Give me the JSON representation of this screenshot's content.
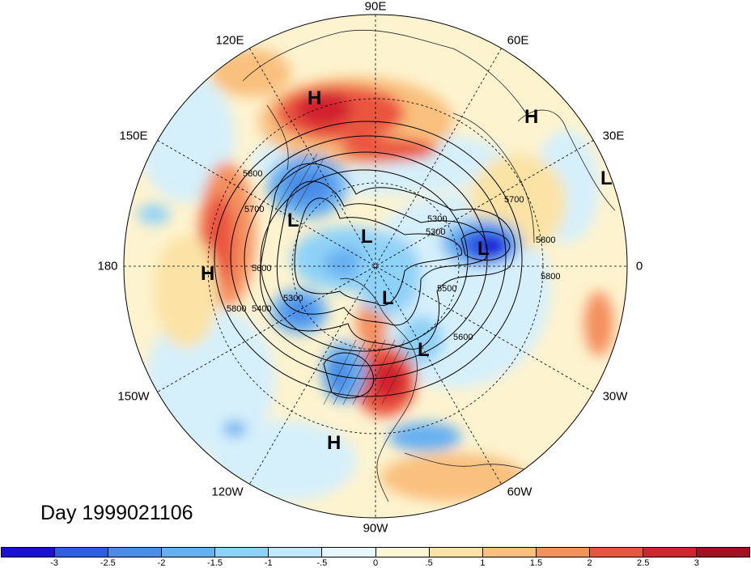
{
  "longitude_labels": {
    "lon_90E": "90E",
    "lon_60E": "60E",
    "lon_120E": "120E",
    "lon_150E": "150E",
    "lon_30E": "30E",
    "lon_180": "180",
    "lon_0": "0",
    "lon_150W": "150W",
    "lon_30W": "30W",
    "lon_120W": "120W",
    "lon_60W": "60W",
    "lon_90W": "90W"
  },
  "day_label": "Day 1999021106",
  "pressure_systems": [
    "H",
    "H",
    "L",
    "L",
    "L",
    "H",
    "L",
    "L",
    "L",
    "H"
  ],
  "contour_labels": [
    "5800",
    "5700",
    "5300",
    "5800",
    "5700",
    "5800",
    "5600",
    "5400",
    "5300",
    "5500",
    "5600",
    "5800",
    "5300"
  ],
  "colorbar": {
    "ticks": [
      "-3",
      "-2.5",
      "-2",
      "-1.5",
      "-1",
      "-.5",
      "0",
      ".5",
      "1",
      "1.5",
      "2",
      "2.5",
      "3"
    ],
    "colors": [
      "#1a0fd6",
      "#2f5ee6",
      "#4a8ce8",
      "#67b0f0",
      "#8fd2f7",
      "#bde9fb",
      "#e6f7fd",
      "#fdf6d5",
      "#fbe3a6",
      "#f9c07e",
      "#f4905e",
      "#ea5540",
      "#d1242e",
      "#a50f22"
    ]
  },
  "colors": {
    "warm_strong": "#d1242e",
    "cold_strong": "#1a0fd6"
  }
}
